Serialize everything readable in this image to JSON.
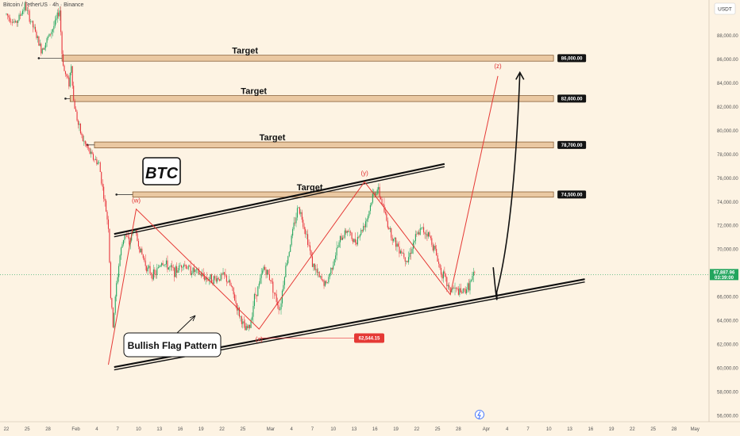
{
  "header": {
    "title": "Bitcoin / TetherUS · 4h · Binance",
    "currency": "USDT"
  },
  "colors": {
    "up": "#22a55e",
    "down": "#e8343c",
    "wave": "#e53935",
    "zone_fill": "#eac8a2",
    "zone_stroke": "#7a4e24",
    "bg": "#fdf3e3"
  },
  "chart_data": {
    "type": "candlestick",
    "ylim": [
      55500,
      91000
    ],
    "y_ticks": [
      56000,
      58000,
      60000,
      62000,
      64000,
      66000,
      68000,
      70000,
      72000,
      74000,
      76000,
      78000,
      80000,
      82000,
      84000,
      86000,
      88000
    ],
    "x_ticks": [
      {
        "label": "22",
        "t": 0
      },
      {
        "label": "25",
        "t": 18
      },
      {
        "label": "28",
        "t": 36
      },
      {
        "label": "Feb",
        "t": 60
      },
      {
        "label": "4",
        "t": 78
      },
      {
        "label": "7",
        "t": 96
      },
      {
        "label": "10",
        "t": 114
      },
      {
        "label": "13",
        "t": 132
      },
      {
        "label": "16",
        "t": 150
      },
      {
        "label": "19",
        "t": 168
      },
      {
        "label": "22",
        "t": 186
      },
      {
        "label": "25",
        "t": 204
      },
      {
        "label": "Mar",
        "t": 228
      },
      {
        "label": "4",
        "t": 246
      },
      {
        "label": "7",
        "t": 264
      },
      {
        "label": "10",
        "t": 282
      },
      {
        "label": "13",
        "t": 300
      },
      {
        "label": "16",
        "t": 318
      },
      {
        "label": "19",
        "t": 336
      },
      {
        "label": "22",
        "t": 354
      },
      {
        "label": "25",
        "t": 372
      },
      {
        "label": "28",
        "t": 390
      },
      {
        "label": "Apr",
        "t": 414
      },
      {
        "label": "4",
        "t": 432
      },
      {
        "label": "7",
        "t": 450
      },
      {
        "label": "10",
        "t": 468
      },
      {
        "label": "13",
        "t": 486
      },
      {
        "label": "16",
        "t": 504
      },
      {
        "label": "19",
        "t": 522
      },
      {
        "label": "22",
        "t": 540
      },
      {
        "label": "25",
        "t": 558
      },
      {
        "label": "28",
        "t": 576
      },
      {
        "label": "May",
        "t": 594
      }
    ],
    "last_t": 404,
    "price_path": [
      [
        0,
        89800
      ],
      [
        8,
        89000
      ],
      [
        16,
        90500
      ],
      [
        24,
        88500
      ],
      [
        30,
        86800
      ],
      [
        36,
        87800
      ],
      [
        42,
        89000
      ],
      [
        46,
        90200
      ],
      [
        48,
        86500
      ],
      [
        50,
        85000
      ],
      [
        54,
        84000
      ],
      [
        56,
        85600
      ],
      [
        58,
        82500
      ],
      [
        62,
        80500
      ],
      [
        66,
        79200
      ],
      [
        70,
        78500
      ],
      [
        74,
        77800
      ],
      [
        80,
        77200
      ],
      [
        84,
        74500
      ],
      [
        88,
        72000
      ],
      [
        90,
        66000
      ],
      [
        92,
        63600
      ],
      [
        95,
        67000
      ],
      [
        98,
        69500
      ],
      [
        102,
        71400
      ],
      [
        106,
        70500
      ],
      [
        110,
        71800
      ],
      [
        116,
        69800
      ],
      [
        122,
        68300
      ],
      [
        128,
        67800
      ],
      [
        134,
        69000
      ],
      [
        140,
        68500
      ],
      [
        146,
        68100
      ],
      [
        152,
        68900
      ],
      [
        158,
        68300
      ],
      [
        164,
        68100
      ],
      [
        172,
        67600
      ],
      [
        180,
        67500
      ],
      [
        188,
        67800
      ],
      [
        194,
        66800
      ],
      [
        200,
        64800
      ],
      [
        206,
        63200
      ],
      [
        210,
        63500
      ],
      [
        214,
        66000
      ],
      [
        218,
        67000
      ],
      [
        222,
        68500
      ],
      [
        228,
        67500
      ],
      [
        232,
        66000
      ],
      [
        236,
        65000
      ],
      [
        240,
        68000
      ],
      [
        244,
        70000
      ],
      [
        248,
        72000
      ],
      [
        252,
        73700
      ],
      [
        256,
        72300
      ],
      [
        260,
        70800
      ],
      [
        264,
        68800
      ],
      [
        270,
        67600
      ],
      [
        276,
        67000
      ],
      [
        282,
        69000
      ],
      [
        288,
        70800
      ],
      [
        294,
        71700
      ],
      [
        300,
        70600
      ],
      [
        306,
        71500
      ],
      [
        312,
        72900
      ],
      [
        316,
        74500
      ],
      [
        320,
        75100
      ],
      [
        324,
        74000
      ],
      [
        328,
        72400
      ],
      [
        334,
        70800
      ],
      [
        340,
        70000
      ],
      [
        346,
        69100
      ],
      [
        352,
        70800
      ],
      [
        358,
        71700
      ],
      [
        364,
        71300
      ],
      [
        370,
        69900
      ],
      [
        374,
        68400
      ],
      [
        378,
        67600
      ],
      [
        382,
        66600
      ],
      [
        386,
        66700
      ],
      [
        392,
        66300
      ],
      [
        398,
        66800
      ],
      [
        404,
        67900
      ]
    ],
    "targets": [
      {
        "label": "Target",
        "value_label": "86,000.00",
        "low": 85850,
        "high": 86350,
        "t0": 48,
        "t1": 472,
        "dot_t": 28
      },
      {
        "label": "Target",
        "value_label": "82,600.00",
        "low": 82450,
        "high": 82950,
        "t0": 55,
        "t1": 472,
        "dot_t": 51
      },
      {
        "label": "Target",
        "value_label": "78,700.00",
        "low": 78550,
        "high": 79050,
        "t0": 76,
        "t1": 472,
        "dot_t": 70
      },
      {
        "label": "Target",
        "value_label": "74,500.00",
        "low": 74400,
        "high": 74850,
        "t0": 109,
        "t1": 472,
        "dot_t": 95
      }
    ],
    "channel": {
      "upper": [
        [
          93,
          71300
        ],
        [
          378,
          77200
        ]
      ],
      "lower": [
        [
          93,
          60100
        ],
        [
          499,
          67500
        ]
      ]
    },
    "wave_path": [
      [
        88,
        60300
      ],
      [
        112,
        73400
      ],
      [
        218,
        63300
      ],
      [
        309,
        75700
      ],
      [
        383,
        66200
      ],
      [
        424,
        84600
      ]
    ],
    "wave_labels": [
      {
        "text": "(w)",
        "t": 112,
        "p": 73700
      },
      {
        "text": "(x)",
        "t": 218,
        "p": 62000
      },
      {
        "text": "(y)",
        "t": 309,
        "p": 76000
      },
      {
        "text": "(z)",
        "t": 424,
        "p": 85000
      }
    ],
    "low_marker": {
      "value_label": "62,544.15",
      "t0": 218,
      "t1": 300,
      "p": 62544
    },
    "current_price": {
      "value_label": "67,887.96",
      "time_label": "03:39:00",
      "p": 67888
    },
    "titles": {
      "ticker": "BTC",
      "pattern": "Bullish Flag Pattern"
    }
  }
}
